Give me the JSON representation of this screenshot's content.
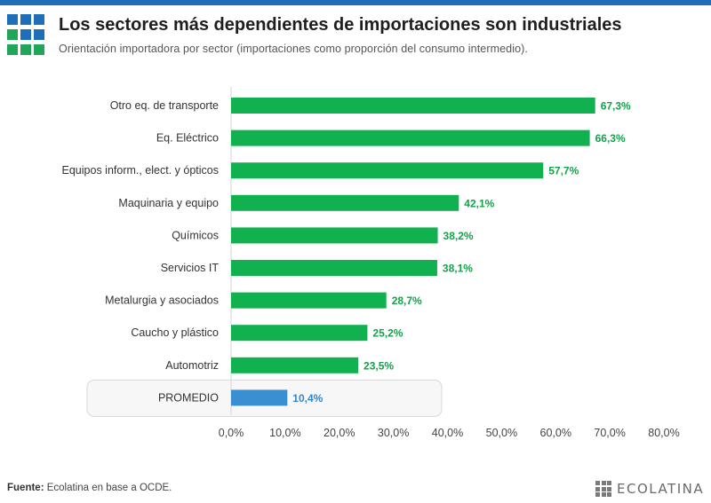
{
  "header": {
    "title": "Los sectores más dependientes de importaciones son industriales",
    "subtitle": "Orientación importadora por sector (importaciones como proporción del consumo intermedio).",
    "logo_colors": [
      "#1f6fb8",
      "#1f6fb8",
      "#1f6fb8",
      "#21a558",
      "#1f6fb8",
      "#1f6fb8",
      "#21a558",
      "#21a558",
      "#21a558"
    ]
  },
  "chart_data": {
    "type": "bar",
    "orientation": "horizontal",
    "title": "",
    "xlabel": "",
    "ylabel": "",
    "categories": [
      "Otro eq. de transporte",
      "Eq. Eléctrico",
      "Equipos inform., elect. y ópticos",
      "Maquinaria y equipo",
      "Químicos",
      "Servicios IT",
      "Metalurgia y asociados",
      "Caucho y plástico",
      "Automotriz",
      "PROMEDIO"
    ],
    "values": [
      67.3,
      66.3,
      57.7,
      42.1,
      38.2,
      38.1,
      28.7,
      25.2,
      23.5,
      10.4
    ],
    "value_labels": [
      "67,3%",
      "66,3%",
      "57,7%",
      "42,1%",
      "38,2%",
      "38,1%",
      "28,7%",
      "25,2%",
      "23,5%",
      "10,4%"
    ],
    "highlight_index": 9,
    "xlim": [
      0,
      80
    ],
    "x_ticks": [
      0,
      10,
      20,
      30,
      40,
      50,
      60,
      70,
      80
    ],
    "x_tick_labels": [
      "0,0%",
      "10,0%",
      "20,0%",
      "30,0%",
      "40,0%",
      "50,0%",
      "60,0%",
      "70,0%",
      "80,0%"
    ],
    "grid": false,
    "bar_color": "#12b14f",
    "highlight_color": "#3a8fd0",
    "label_color": "#12a34a",
    "highlight_label_color": "#2f86c8"
  },
  "footer": {
    "source_label": "Fuente:",
    "source_text": " Ecolatina en base a OCDE.",
    "brand_name": "ECOLATINA"
  }
}
